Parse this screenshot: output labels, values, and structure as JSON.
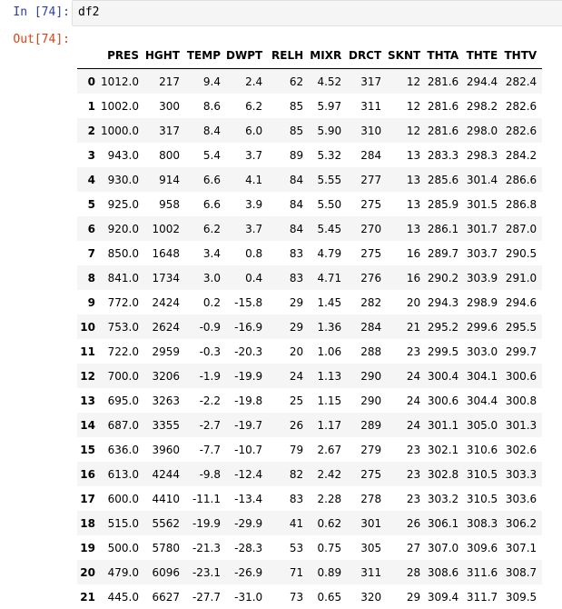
{
  "input_cell": {
    "prompt": "In [74]:",
    "code": "df2"
  },
  "output_cell": {
    "prompt": "Out[74]:"
  },
  "table": {
    "columns": [
      "",
      "PRES",
      "HGHT",
      "TEMP",
      "DWPT",
      "RELH",
      "MIXR",
      "DRCT",
      "SKNT",
      "THTA",
      "THTE",
      "THTV"
    ],
    "rows": [
      [
        "0",
        "1012.0",
        "217",
        "9.4",
        "2.4",
        "62",
        "4.52",
        "317",
        "12",
        "281.6",
        "294.4",
        "282.4"
      ],
      [
        "1",
        "1002.0",
        "300",
        "8.6",
        "6.2",
        "85",
        "5.97",
        "311",
        "12",
        "281.6",
        "298.2",
        "282.6"
      ],
      [
        "2",
        "1000.0",
        "317",
        "8.4",
        "6.0",
        "85",
        "5.90",
        "310",
        "12",
        "281.6",
        "298.0",
        "282.6"
      ],
      [
        "3",
        "943.0",
        "800",
        "5.4",
        "3.7",
        "89",
        "5.32",
        "284",
        "13",
        "283.3",
        "298.3",
        "284.2"
      ],
      [
        "4",
        "930.0",
        "914",
        "6.6",
        "4.1",
        "84",
        "5.55",
        "277",
        "13",
        "285.6",
        "301.4",
        "286.6"
      ],
      [
        "5",
        "925.0",
        "958",
        "6.6",
        "3.9",
        "84",
        "5.50",
        "275",
        "13",
        "285.9",
        "301.5",
        "286.8"
      ],
      [
        "6",
        "920.0",
        "1002",
        "6.2",
        "3.7",
        "84",
        "5.45",
        "270",
        "13",
        "286.1",
        "301.7",
        "287.0"
      ],
      [
        "7",
        "850.0",
        "1648",
        "3.4",
        "0.8",
        "83",
        "4.79",
        "275",
        "16",
        "289.7",
        "303.7",
        "290.5"
      ],
      [
        "8",
        "841.0",
        "1734",
        "3.0",
        "0.4",
        "83",
        "4.71",
        "276",
        "16",
        "290.2",
        "303.9",
        "291.0"
      ],
      [
        "9",
        "772.0",
        "2424",
        "0.2",
        "-15.8",
        "29",
        "1.45",
        "282",
        "20",
        "294.3",
        "298.9",
        "294.6"
      ],
      [
        "10",
        "753.0",
        "2624",
        "-0.9",
        "-16.9",
        "29",
        "1.36",
        "284",
        "21",
        "295.2",
        "299.6",
        "295.5"
      ],
      [
        "11",
        "722.0",
        "2959",
        "-0.3",
        "-20.3",
        "20",
        "1.06",
        "288",
        "23",
        "299.5",
        "303.0",
        "299.7"
      ],
      [
        "12",
        "700.0",
        "3206",
        "-1.9",
        "-19.9",
        "24",
        "1.13",
        "290",
        "24",
        "300.4",
        "304.1",
        "300.6"
      ],
      [
        "13",
        "695.0",
        "3263",
        "-2.2",
        "-19.8",
        "25",
        "1.15",
        "290",
        "24",
        "300.6",
        "304.4",
        "300.8"
      ],
      [
        "14",
        "687.0",
        "3355",
        "-2.7",
        "-19.7",
        "26",
        "1.17",
        "289",
        "24",
        "301.1",
        "305.0",
        "301.3"
      ],
      [
        "15",
        "636.0",
        "3960",
        "-7.7",
        "-10.7",
        "79",
        "2.67",
        "279",
        "23",
        "302.1",
        "310.6",
        "302.6"
      ],
      [
        "16",
        "613.0",
        "4244",
        "-9.8",
        "-12.4",
        "82",
        "2.42",
        "275",
        "23",
        "302.8",
        "310.5",
        "303.3"
      ],
      [
        "17",
        "600.0",
        "4410",
        "-11.1",
        "-13.4",
        "83",
        "2.28",
        "278",
        "23",
        "303.2",
        "310.5",
        "303.6"
      ],
      [
        "18",
        "515.0",
        "5562",
        "-19.9",
        "-29.9",
        "41",
        "0.62",
        "301",
        "26",
        "306.1",
        "308.3",
        "306.2"
      ],
      [
        "19",
        "500.0",
        "5780",
        "-21.3",
        "-28.3",
        "53",
        "0.75",
        "305",
        "27",
        "307.0",
        "309.6",
        "307.1"
      ],
      [
        "20",
        "479.0",
        "6096",
        "-23.1",
        "-26.9",
        "71",
        "0.89",
        "311",
        "28",
        "308.6",
        "311.6",
        "308.7"
      ],
      [
        "21",
        "445.0",
        "6627",
        "-27.7",
        "-31.0",
        "73",
        "0.65",
        "320",
        "29",
        "309.4",
        "311.7",
        "309.5"
      ]
    ]
  }
}
